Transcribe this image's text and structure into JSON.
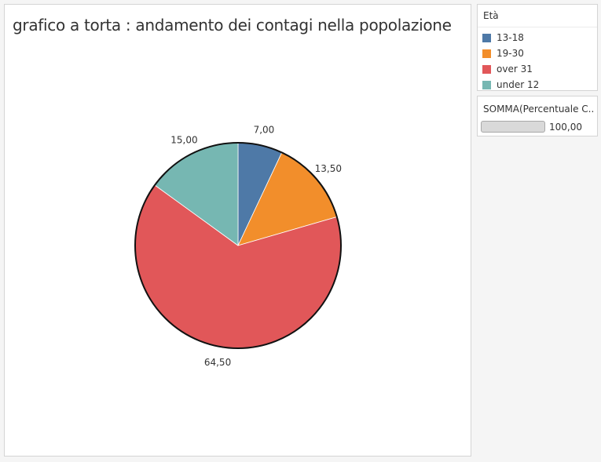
{
  "sheet": {
    "title": "grafico a torta : andamento dei contagi nella popolazione"
  },
  "chart_data": {
    "type": "pie",
    "title": "grafico a torta : andamento dei contagi nella popolazione",
    "slices": [
      {
        "label": "13-18",
        "value": 7.0,
        "display": "7,00",
        "color": "#4e79a7"
      },
      {
        "label": "19-30",
        "value": 13.5,
        "display": "13,50",
        "color": "#f28e2b"
      },
      {
        "label": "over 31",
        "value": 64.5,
        "display": "64,50",
        "color": "#e15759"
      },
      {
        "label": "under 12",
        "value": 15.0,
        "display": "15,00",
        "color": "#76b7b2"
      }
    ],
    "start_angle_deg": 0,
    "direction": "clockwise",
    "legend_position": "right"
  },
  "legend": {
    "title": "Età",
    "items": [
      {
        "label": "13-18",
        "color": "#4e79a7"
      },
      {
        "label": "19-30",
        "color": "#f28e2b"
      },
      {
        "label": "over 31",
        "color": "#e15759"
      },
      {
        "label": "under 12",
        "color": "#76b7b2"
      }
    ]
  },
  "size_legend": {
    "title": "SOMMA(Percentuale C...",
    "value": "100,00"
  }
}
